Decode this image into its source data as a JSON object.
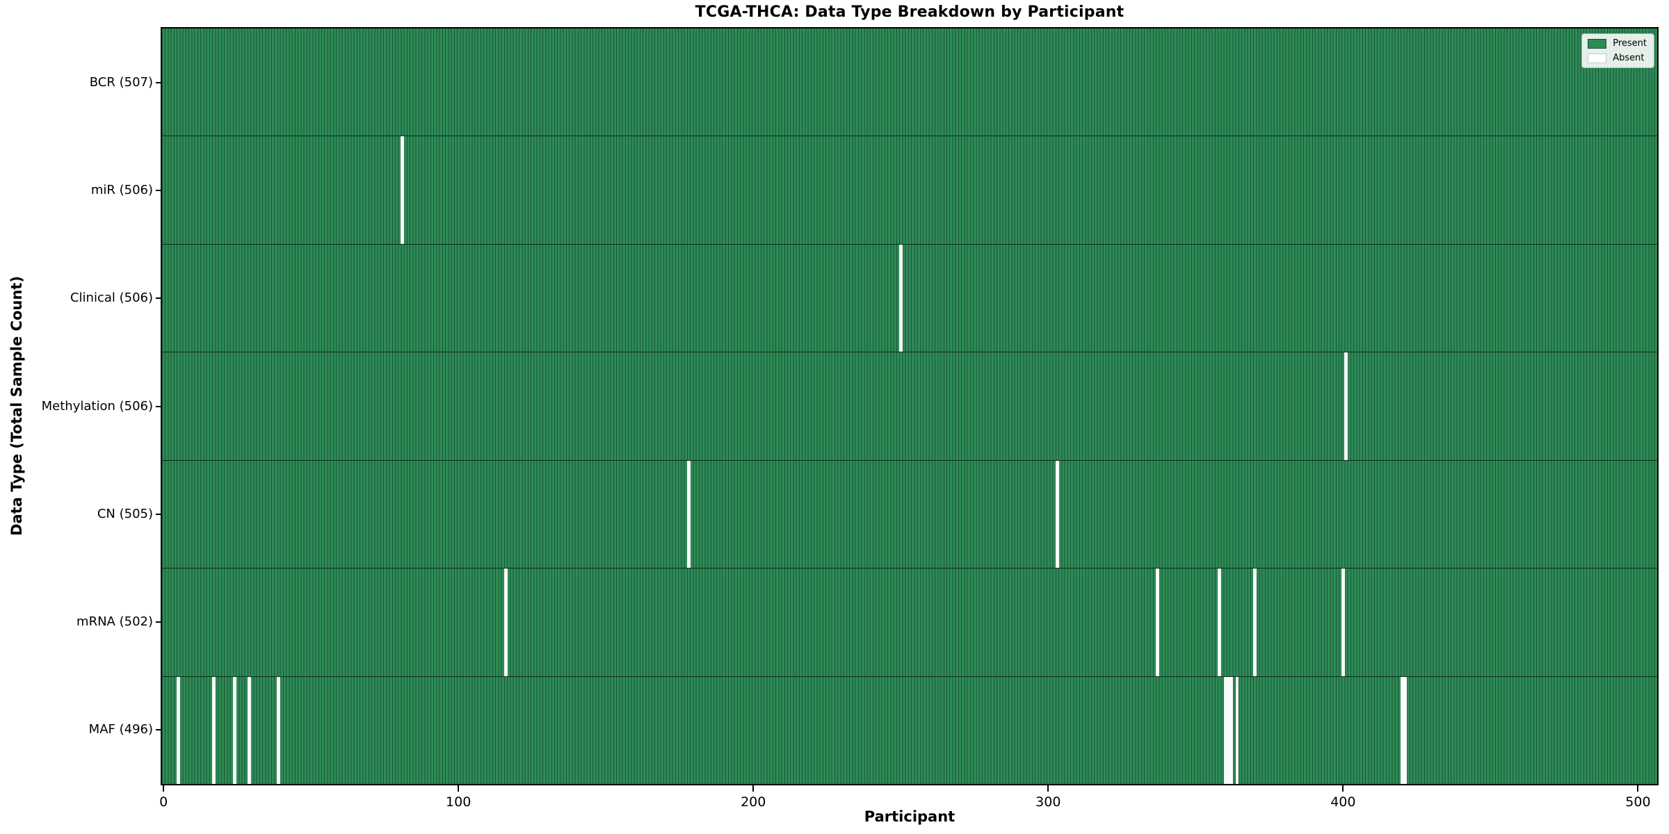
{
  "title": "TCGA-THCA: Data Type Breakdown by Participant",
  "chart_data": {
    "type": "heatmap",
    "title": "TCGA-THCA: Data Type Breakdown by Participant",
    "xlabel": "Participant",
    "ylabel": "Data Type (Total Sample Count)",
    "n_participants": 507,
    "x_ticks": [
      0,
      100,
      200,
      300,
      400,
      500
    ],
    "grid": false,
    "legend_position": "upper right",
    "legend": [
      {
        "label": "Present",
        "color": "#2e8b57"
      },
      {
        "label": "Absent",
        "color": "#ffffff"
      }
    ],
    "colors": {
      "present": "#2e8b57",
      "absent": "#ffffff",
      "cell_edge": "#1d4b32",
      "spine": "#000000"
    },
    "rows": [
      {
        "data_type": "BCR",
        "label": "BCR (507)",
        "present_count": 507,
        "absent_participants": []
      },
      {
        "data_type": "miR",
        "label": "miR (506)",
        "present_count": 506,
        "absent_participants": [
          81
        ]
      },
      {
        "data_type": "Clinical",
        "label": "Clinical (506)",
        "present_count": 506,
        "absent_participants": [
          250
        ]
      },
      {
        "data_type": "Methylation",
        "label": "Methylation (506)",
        "present_count": 506,
        "absent_participants": [
          401
        ]
      },
      {
        "data_type": "CN",
        "label": "CN (505)",
        "present_count": 505,
        "absent_participants": [
          178,
          303
        ]
      },
      {
        "data_type": "mRNA",
        "label": "mRNA (502)",
        "present_count": 502,
        "absent_participants": [
          116,
          337,
          358,
          370,
          400
        ]
      },
      {
        "data_type": "MAF",
        "label": "MAF (496)",
        "present_count": 496,
        "absent_participants": [
          5,
          17,
          24,
          29,
          39,
          360,
          361,
          362,
          364,
          420,
          421
        ]
      }
    ]
  }
}
